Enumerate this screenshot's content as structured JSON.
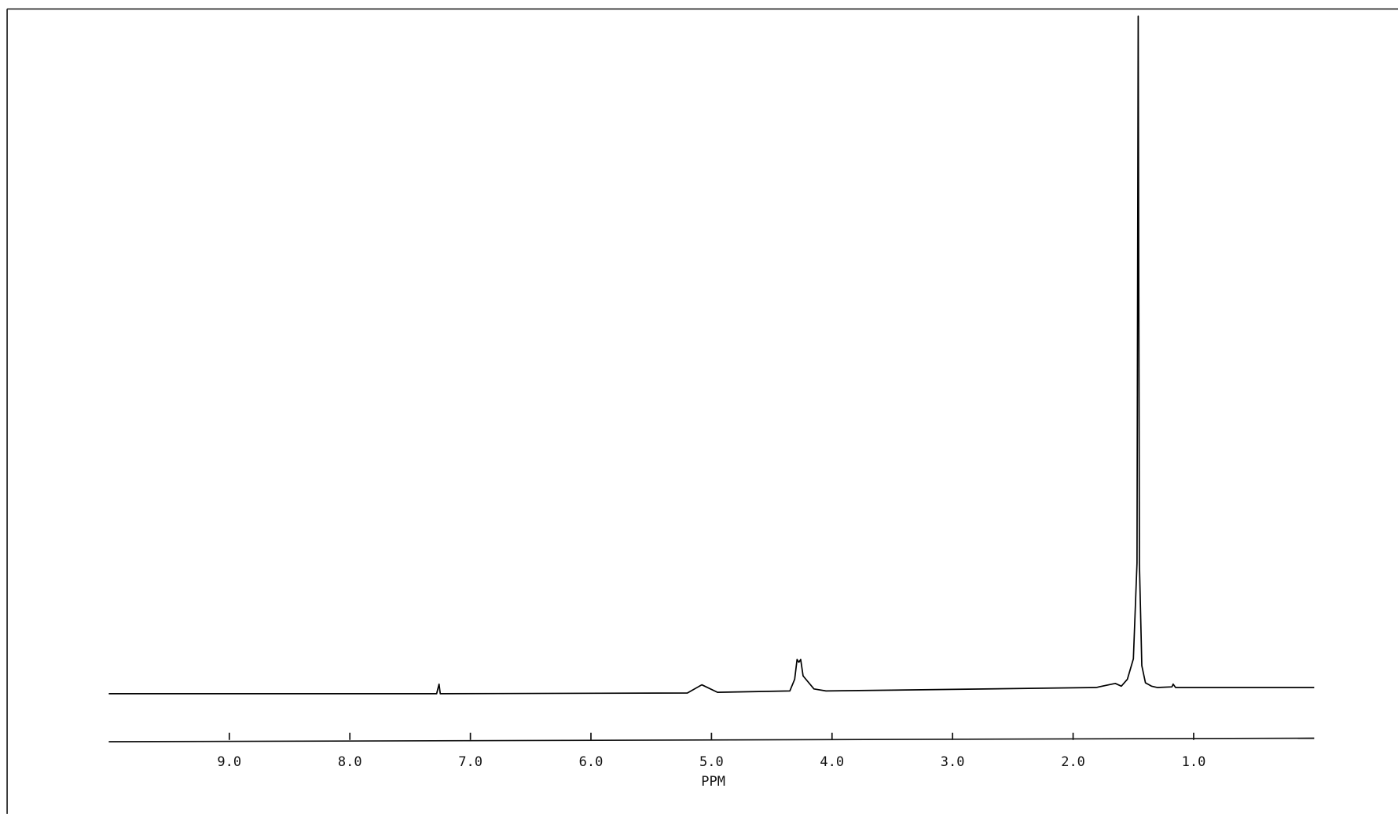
{
  "chart_data": {
    "type": "line",
    "x_label": "PPM",
    "x": [
      10.0,
      7.28,
      7.26,
      7.25,
      5.2,
      5.08,
      4.95,
      4.35,
      4.31,
      4.29,
      4.275,
      4.26,
      4.24,
      4.15,
      4.05,
      1.81,
      1.65,
      1.6,
      1.55,
      1.5,
      1.47,
      1.46,
      1.45,
      1.43,
      1.4,
      1.35,
      1.3,
      1.18,
      1.17,
      1.15,
      0.0
    ],
    "values": [
      0.9,
      0.9,
      2.3,
      0.9,
      1.0,
      2.2,
      1.1,
      1.3,
      3.0,
      5.9,
      5.5,
      5.9,
      3.5,
      1.6,
      1.3,
      1.8,
      2.4,
      2.0,
      3.0,
      6.0,
      20,
      100,
      20,
      5.0,
      2.5,
      2.0,
      1.8,
      1.9,
      2.3,
      1.8,
      1.8
    ],
    "color": "#000000",
    "xlim": [
      10.0,
      0.0
    ],
    "ylim": [
      0,
      100
    ],
    "xticks": [
      {
        "value": 9,
        "label": "9.0"
      },
      {
        "value": 8,
        "label": "8.0"
      },
      {
        "value": 7,
        "label": "7.0"
      },
      {
        "value": 6,
        "label": "6.0"
      },
      {
        "value": 5,
        "label": "5.0"
      },
      {
        "value": 4,
        "label": "4.0"
      },
      {
        "value": 3,
        "label": "3.0"
      },
      {
        "value": 2,
        "label": "2.0"
      },
      {
        "value": 1,
        "label": "1.0"
      }
    ]
  }
}
